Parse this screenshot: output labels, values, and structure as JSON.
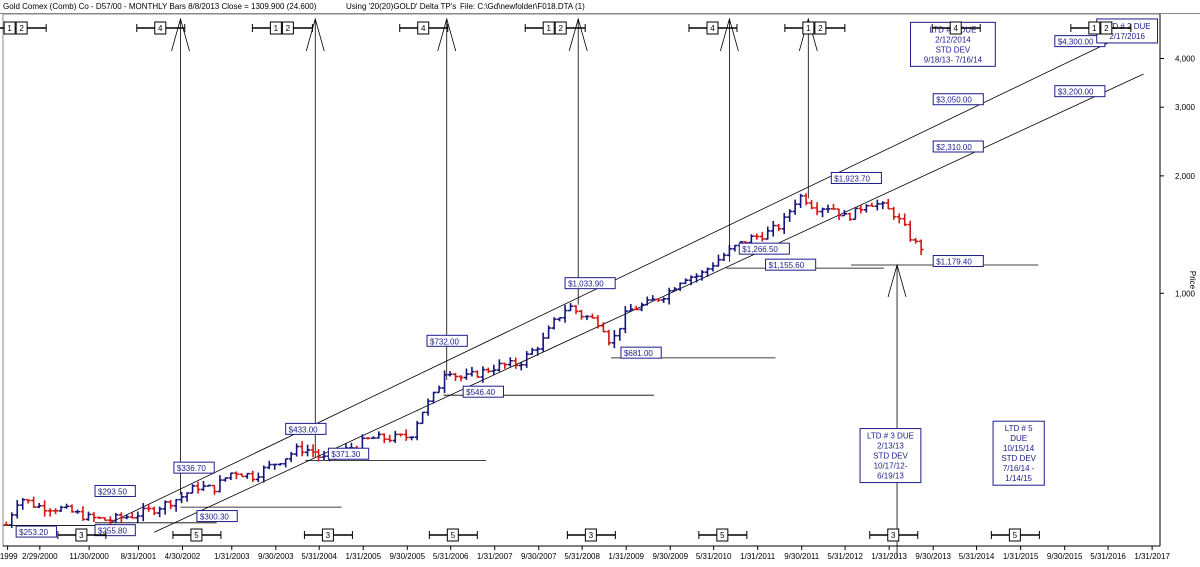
{
  "header": {
    "instrument": "Gold Comex (Comb) Co - D57/00  - MONTHLY Bars  8/8/2013 Close = 1309.900 (24.600)",
    "using": "Using '20(20)GOLD' Delta TP's",
    "file": "File: C:\\Gd\\newfolder\\F018.DTA (1)"
  },
  "chart_data": {
    "type": "ohlc",
    "title": "",
    "ylabel": "Price",
    "y_scale": "log",
    "ylim": [
      225,
      5200
    ],
    "xlim": [
      1999.6,
      2017.2
    ],
    "yticks": [
      {
        "value": 1000,
        "label": "1,000"
      },
      {
        "value": 2000,
        "label": "2,000"
      },
      {
        "value": 3000,
        "label": "3,000"
      },
      {
        "value": 4000,
        "label": "4,000"
      }
    ],
    "xticks": [
      {
        "x": 1999.67,
        "label": "/1999"
      },
      {
        "x": 2000.16,
        "label": "2/29/2000"
      },
      {
        "x": 2000.91,
        "label": "11/30/2000"
      },
      {
        "x": 2001.66,
        "label": "8/31/2001"
      },
      {
        "x": 2002.33,
        "label": "4/30/2002"
      },
      {
        "x": 2003.08,
        "label": "1/31/2003"
      },
      {
        "x": 2003.75,
        "label": "9/30/2003"
      },
      {
        "x": 2004.41,
        "label": "5/31/2004"
      },
      {
        "x": 2005.08,
        "label": "1/31/2005"
      },
      {
        "x": 2005.75,
        "label": "9/30/2005"
      },
      {
        "x": 2006.41,
        "label": "5/31/2006"
      },
      {
        "x": 2007.08,
        "label": "1/31/2007"
      },
      {
        "x": 2007.75,
        "label": "9/30/2007"
      },
      {
        "x": 2008.41,
        "label": "5/31/2008"
      },
      {
        "x": 2009.08,
        "label": "1/31/2009"
      },
      {
        "x": 2009.75,
        "label": "9/30/2009"
      },
      {
        "x": 2010.41,
        "label": "5/31/2010"
      },
      {
        "x": 2011.08,
        "label": "1/31/2011"
      },
      {
        "x": 2011.75,
        "label": "9/30/2011"
      },
      {
        "x": 2012.41,
        "label": "5/31/2012"
      },
      {
        "x": 2013.08,
        "label": "1/31/2013"
      },
      {
        "x": 2013.75,
        "label": "9/30/2013"
      },
      {
        "x": 2014.41,
        "label": "5/31/2014"
      },
      {
        "x": 2015.08,
        "label": "1/31/2015"
      },
      {
        "x": 2015.75,
        "label": "9/30/2015"
      },
      {
        "x": 2016.41,
        "label": "5/31/2016"
      },
      {
        "x": 2017.08,
        "label": "1/31/2017"
      }
    ],
    "up_color": "#14147a",
    "down_color": "#d61414",
    "anchors": [
      [
        1999.65,
        255
      ],
      [
        1999.85,
        300
      ],
      [
        2000.1,
        285
      ],
      [
        2000.5,
        280
      ],
      [
        2000.9,
        266
      ],
      [
        2001.2,
        262
      ],
      [
        2001.6,
        270
      ],
      [
        2001.9,
        280
      ],
      [
        2002.3,
        300
      ],
      [
        2002.55,
        320
      ],
      [
        2002.8,
        315
      ],
      [
        2003.1,
        350
      ],
      [
        2003.4,
        340
      ],
      [
        2003.9,
        380
      ],
      [
        2004.1,
        400
      ],
      [
        2004.3,
        395
      ],
      [
        2004.45,
        375
      ],
      [
        2004.8,
        395
      ],
      [
        2005.2,
        425
      ],
      [
        2005.5,
        425
      ],
      [
        2005.8,
        430
      ],
      [
        2005.95,
        490
      ],
      [
        2006.2,
        560
      ],
      [
        2006.35,
        650
      ],
      [
        2006.45,
        620
      ],
      [
        2006.6,
        605
      ],
      [
        2006.9,
        630
      ],
      [
        2007.1,
        650
      ],
      [
        2007.45,
        660
      ],
      [
        2007.8,
        750
      ],
      [
        2008.0,
        850
      ],
      [
        2008.2,
        930
      ],
      [
        2008.4,
        880
      ],
      [
        2008.7,
        840
      ],
      [
        2008.85,
        740
      ],
      [
        2009.1,
        900
      ],
      [
        2009.4,
        940
      ],
      [
        2009.7,
        1000
      ],
      [
        2009.95,
        1100
      ],
      [
        2010.2,
        1110
      ],
      [
        2010.45,
        1210
      ],
      [
        2010.7,
        1300
      ],
      [
        2010.95,
        1380
      ],
      [
        2011.2,
        1420
      ],
      [
        2011.45,
        1500
      ],
      [
        2011.65,
        1720
      ],
      [
        2011.75,
        1780
      ],
      [
        2011.95,
        1660
      ],
      [
        2012.2,
        1670
      ],
      [
        2012.4,
        1570
      ],
      [
        2012.55,
        1600
      ],
      [
        2012.75,
        1720
      ],
      [
        2012.95,
        1680
      ],
      [
        2013.15,
        1600
      ],
      [
        2013.3,
        1480
      ],
      [
        2013.45,
        1350
      ],
      [
        2013.6,
        1300
      ]
    ],
    "label_color": "#1c1c8c",
    "price_labels": [
      {
        "x": 1999.8,
        "y": 240,
        "label": "$253.20"
      },
      {
        "x": 2001.0,
        "y": 242,
        "label": "$255.80"
      },
      {
        "x": 2001.0,
        "y": 305,
        "label": "$293.50"
      },
      {
        "x": 2002.2,
        "y": 350,
        "label": "$336.70"
      },
      {
        "x": 2002.55,
        "y": 263,
        "label": "$300.30"
      },
      {
        "x": 2003.9,
        "y": 440,
        "label": "$433.00"
      },
      {
        "x": 2004.55,
        "y": 380,
        "label": "$371.30"
      },
      {
        "x": 2006.05,
        "y": 740,
        "label": "$732.00"
      },
      {
        "x": 2006.6,
        "y": 548,
        "label": "$546.40"
      },
      {
        "x": 2008.15,
        "y": 1040,
        "label": "$1,033.90"
      },
      {
        "x": 2009.0,
        "y": 690,
        "label": "$681.00"
      },
      {
        "x": 2010.8,
        "y": 1275,
        "label": "$1,266.50"
      },
      {
        "x": 2011.2,
        "y": 1160,
        "label": "$1,155.60"
      },
      {
        "x": 2012.2,
        "y": 1935,
        "label": "$1,923.70"
      },
      {
        "x": 2013.75,
        "y": 1185,
        "label": "$1,179.40"
      },
      {
        "x": 2013.75,
        "y": 3080,
        "label": "$3,050.00"
      },
      {
        "x": 2013.75,
        "y": 2330,
        "label": "$2,310.00"
      },
      {
        "x": 2015.6,
        "y": 4340,
        "label": "$4,300.00"
      },
      {
        "x": 2015.6,
        "y": 3230,
        "label": "$3,200.00"
      }
    ],
    "channel_lines": [
      {
        "x1": 2001.25,
        "y1": 259,
        "x2": 2016.55,
        "y2": 4500
      },
      {
        "x1": 2001.9,
        "y1": 244,
        "x2": 2016.95,
        "y2": 3650
      }
    ],
    "support_lines": [
      {
        "x1": 1999.6,
        "y1": 254,
        "x2": 2001.4,
        "y2": 254
      },
      {
        "x1": 2001.0,
        "y1": 258,
        "x2": 2002.85,
        "y2": 258
      },
      {
        "x1": 2002.3,
        "y1": 283,
        "x2": 2004.75,
        "y2": 283
      },
      {
        "x1": 2004.2,
        "y1": 373,
        "x2": 2006.95,
        "y2": 373
      },
      {
        "x1": 2006.3,
        "y1": 548,
        "x2": 2009.5,
        "y2": 548
      },
      {
        "x1": 2008.85,
        "y1": 683,
        "x2": 2011.35,
        "y2": 683
      },
      {
        "x1": 2010.6,
        "y1": 1160,
        "x2": 2013.0,
        "y2": 1160
      },
      {
        "x1": 2012.5,
        "y1": 1182,
        "x2": 2015.35,
        "y2": 1182
      }
    ],
    "arrow_lines": [
      {
        "x": 2002.3,
        "y_top": 5050,
        "y_bottom": 305
      },
      {
        "x": 2004.35,
        "y_top": 5050,
        "y_bottom": 380
      },
      {
        "x": 2006.35,
        "y_top": 5050,
        "y_bottom": 600
      },
      {
        "x": 2008.35,
        "y_top": 5050,
        "y_bottom": 935
      },
      {
        "x": 2010.65,
        "y_top": 5050,
        "y_bottom": 1205
      },
      {
        "x": 2011.85,
        "y_top": 5050,
        "y_bottom": 1750
      },
      {
        "x": 2013.2,
        "y_top": 1182,
        "y_bottom": 210
      }
    ],
    "cycle_markers_top": [
      {
        "x": 1999.8,
        "digits": [
          "1",
          "2"
        ]
      },
      {
        "x": 2002.0,
        "digits": [
          "4"
        ]
      },
      {
        "x": 2003.85,
        "digits": [
          "1",
          "2"
        ]
      },
      {
        "x": 2006.0,
        "digits": [
          "4"
        ]
      },
      {
        "x": 2008.0,
        "digits": [
          "1",
          "2"
        ]
      },
      {
        "x": 2010.4,
        "digits": [
          "4"
        ]
      },
      {
        "x": 2011.95,
        "digits": [
          "1",
          "2"
        ]
      },
      {
        "x": 2014.1,
        "digits": [
          "4"
        ]
      },
      {
        "x": 2016.3,
        "digits": [
          "1",
          "2"
        ]
      }
    ],
    "cycle_markers_bottom": [
      {
        "x": 2000.8,
        "digits": [
          "3"
        ]
      },
      {
        "x": 2002.55,
        "digits": [
          "5"
        ]
      },
      {
        "x": 2004.55,
        "digits": [
          "3"
        ]
      },
      {
        "x": 2006.45,
        "digits": [
          "5"
        ]
      },
      {
        "x": 2008.55,
        "digits": [
          "3"
        ]
      },
      {
        "x": 2010.55,
        "digits": [
          "5"
        ]
      },
      {
        "x": 2013.15,
        "digits": [
          "3"
        ]
      },
      {
        "x": 2015.0,
        "digits": [
          "5"
        ]
      }
    ],
    "ltd_boxes": [
      {
        "x": 2016.7,
        "y": 5050,
        "lines": [
          "LTD # 2 DUE",
          "2/17/2016"
        ]
      },
      {
        "x": 2014.05,
        "y": 4950,
        "lines": [
          "LTD # 4 DUE",
          "2/12/2014",
          "STD DEV",
          "9/18/13- 7/16/14"
        ]
      },
      {
        "x": 2013.1,
        "y": 450,
        "lines": [
          "LTD # 3 DUE",
          "2/13/13",
          "STD DEV",
          "10/17/12-",
          "6/19/13"
        ]
      },
      {
        "x": 2015.05,
        "y": 470,
        "lines": [
          "LTD # 5",
          "DUE",
          "10/15/14",
          "STD DEV",
          "7/16/14 -",
          "1/14/15"
        ]
      }
    ]
  }
}
